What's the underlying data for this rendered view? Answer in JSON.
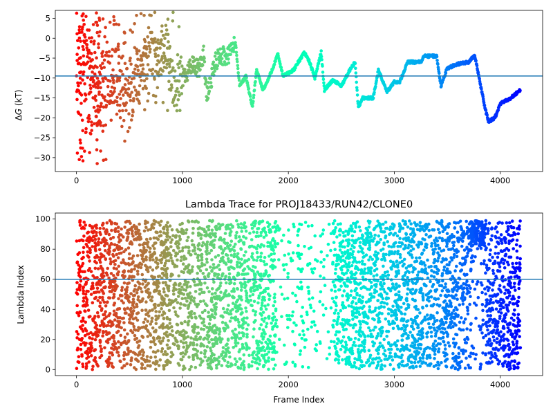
{
  "chart_data": [
    {
      "type": "scatter",
      "title": "",
      "xlabel": "",
      "ylabel_prefix": "Δ",
      "ylabel_var": "G",
      "ylabel_suffix": " (kT)",
      "xlim": [
        -200,
        4400
      ],
      "ylim": [
        -33.5,
        7
      ],
      "xticks": [
        0,
        1000,
        2000,
        3000,
        4000
      ],
      "yticks": [
        5,
        0,
        -5,
        -10,
        -15,
        -20,
        -25,
        -30
      ],
      "hline": -9.5,
      "hline_color": "#1f77b4",
      "colormap": "rainbow (reversed: red at start, violet at end)",
      "x_max": 4190,
      "trajectory_anchors": [
        [
          0,
          -5
        ],
        [
          30,
          -15
        ],
        [
          60,
          -3
        ],
        [
          100,
          -8
        ],
        [
          150,
          -5
        ],
        [
          200,
          -16
        ],
        [
          260,
          -8
        ],
        [
          330,
          -12
        ],
        [
          400,
          -10
        ],
        [
          460,
          -18
        ],
        [
          520,
          -12
        ],
        [
          600,
          -9
        ],
        [
          680,
          -3
        ],
        [
          760,
          -6
        ],
        [
          850,
          -2
        ],
        [
          930,
          -14
        ],
        [
          1000,
          -10
        ],
        [
          1080,
          -7
        ],
        [
          1160,
          -8
        ],
        [
          1200,
          -3.5
        ],
        [
          1230,
          -15
        ],
        [
          1300,
          -7
        ],
        [
          1350,
          -4
        ],
        [
          1420,
          -5
        ],
        [
          1500,
          -1
        ],
        [
          1540,
          -12
        ],
        [
          1600,
          -9.5
        ],
        [
          1660,
          -17.5
        ],
        [
          1700,
          -8
        ],
        [
          1760,
          -13
        ],
        [
          1800,
          -11
        ],
        [
          1860,
          -7
        ],
        [
          1900,
          -4
        ],
        [
          1950,
          -9.5
        ],
        [
          2050,
          -8
        ],
        [
          2150,
          -3.5
        ],
        [
          2200,
          -6
        ],
        [
          2250,
          -10
        ],
        [
          2310,
          -3.5
        ],
        [
          2340,
          -13
        ],
        [
          2420,
          -10.5
        ],
        [
          2500,
          -12
        ],
        [
          2580,
          -8
        ],
        [
          2630,
          -6
        ],
        [
          2660,
          -17.5
        ],
        [
          2700,
          -15
        ],
        [
          2800,
          -15
        ],
        [
          2850,
          -8
        ],
        [
          2930,
          -13.5
        ],
        [
          3000,
          -11
        ],
        [
          3050,
          -11
        ],
        [
          3100,
          -8
        ],
        [
          3120,
          -6
        ],
        [
          3250,
          -6
        ],
        [
          3280,
          -4.5
        ],
        [
          3400,
          -4.5
        ],
        [
          3440,
          -12
        ],
        [
          3500,
          -7.5
        ],
        [
          3600,
          -6.5
        ],
        [
          3700,
          -6
        ],
        [
          3760,
          -4.3
        ],
        [
          3800,
          -10
        ],
        [
          3860,
          -18
        ],
        [
          3890,
          -21
        ],
        [
          3950,
          -20
        ],
        [
          4000,
          -16.5
        ],
        [
          4100,
          -15
        ],
        [
          4190,
          -13
        ]
      ],
      "early_scatter_values": [
        0,
        -5,
        -10,
        -15,
        -20,
        -22,
        -24.5,
        -30,
        4.8,
        2,
        -2,
        -8,
        -12,
        -18,
        -21.5,
        -27,
        5.5,
        3,
        -1,
        -6,
        -11,
        -16,
        -23,
        -29
      ]
    },
    {
      "type": "scatter",
      "title": "Lambda Trace for PROJ18433/RUN42/CLONE0",
      "xlabel": "Frame Index",
      "ylabel": "Lambda Index",
      "xlim": [
        -200,
        4400
      ],
      "ylim": [
        -4,
        104
      ],
      "xticks": [
        0,
        1000,
        2000,
        3000,
        4000
      ],
      "yticks": [
        100,
        80,
        60,
        40,
        20,
        0
      ],
      "hline": 60,
      "hline_color": "#1f77b4",
      "colormap": "rainbow (reversed: red at start, violet at end)",
      "x_max": 4190,
      "value_range": [
        0,
        99
      ],
      "dense_band": {
        "x_range": [
          3700,
          3860
        ],
        "y_range": [
          82,
          99
        ]
      }
    }
  ]
}
